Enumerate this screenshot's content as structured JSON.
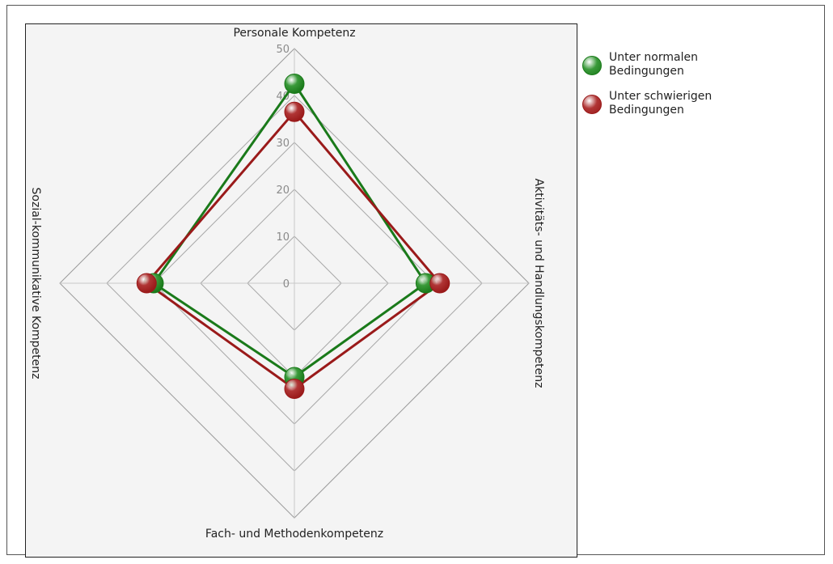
{
  "chart_data": {
    "type": "radar",
    "axes": [
      "Personale Kompetenz",
      "Aktivitäts- und Handlungskompetenz",
      "Fach- und Methodenkompetenz",
      "Sozial-kommunikative Kompetenz"
    ],
    "rlim": [
      0,
      50
    ],
    "ticks": [
      "0",
      "10",
      "20",
      "30",
      "40",
      "50"
    ],
    "tick_values": [
      0,
      10,
      20,
      30,
      40,
      50
    ],
    "grid": true,
    "legend_position": "right",
    "series": [
      {
        "name": "Unter normalen Bedingungen",
        "values": [
          42.5,
          28,
          20,
          30
        ],
        "color": "#1a7a1a",
        "marker_color": "#3a9a3a"
      },
      {
        "name": "Unter schwierigen Bedingungen",
        "values": [
          36.5,
          31,
          22.5,
          31.5
        ],
        "color": "#9a1a1a",
        "marker_color": "#b03535"
      }
    ]
  },
  "legend": {
    "items": [
      {
        "label": "Unter normalen Bedingungen",
        "color": "#3a9a3a"
      },
      {
        "label": "Unter schwierigen Bedingungen",
        "color": "#b03535"
      }
    ]
  }
}
